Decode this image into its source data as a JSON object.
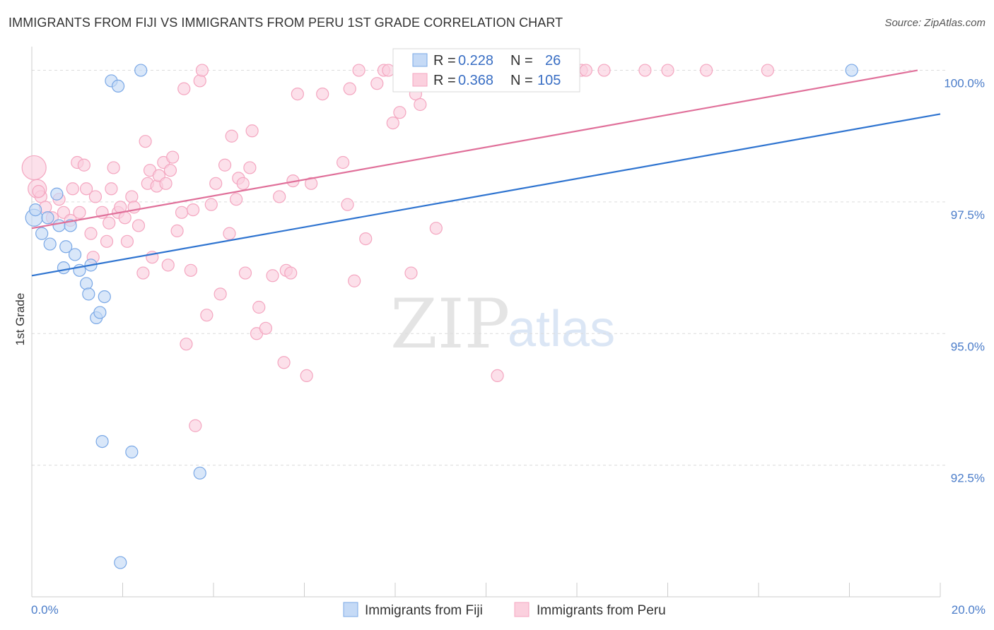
{
  "title": "IMMIGRANTS FROM FIJI VS IMMIGRANTS FROM PERU 1ST GRADE CORRELATION CHART",
  "source": "Source: ZipAtlas.com",
  "watermark": {
    "zip": "ZIP",
    "atlas": "atlas"
  },
  "chart_data": {
    "type": "scatter",
    "title": "IMMIGRANTS FROM FIJI VS IMMIGRANTS FROM PERU 1ST GRADE CORRELATION CHART",
    "xlabel": "",
    "ylabel": "1st Grade",
    "xlim": [
      0,
      20
    ],
    "ylim": [
      90.0,
      100.45
    ],
    "x_tick_labels": [
      "0.0%",
      "20.0%"
    ],
    "y_ticks": [
      92.5,
      95.0,
      97.5,
      100.0
    ],
    "y_tick_labels": [
      "92.5%",
      "95.0%",
      "97.5%",
      "100.0%"
    ],
    "grid": true,
    "legend_position": "top-center",
    "series": [
      {
        "name": "Immigrants from Fiji",
        "color": "#7aa8e6",
        "line_color": "#2f74d0",
        "R": "0.228",
        "N": "26",
        "trend": {
          "x": [
            0,
            20
          ],
          "y": [
            96.1,
            99.17
          ]
        },
        "points": [
          [
            0.05,
            97.2
          ],
          [
            0.08,
            97.35
          ],
          [
            0.22,
            96.9
          ],
          [
            0.35,
            97.2
          ],
          [
            0.4,
            96.7
          ],
          [
            0.55,
            97.65
          ],
          [
            0.6,
            97.05
          ],
          [
            0.7,
            96.25
          ],
          [
            0.75,
            96.65
          ],
          [
            0.85,
            97.05
          ],
          [
            0.95,
            96.5
          ],
          [
            1.05,
            96.2
          ],
          [
            1.2,
            95.95
          ],
          [
            1.25,
            95.75
          ],
          [
            1.3,
            96.3
          ],
          [
            1.42,
            95.3
          ],
          [
            1.5,
            95.4
          ],
          [
            1.6,
            95.7
          ],
          [
            1.75,
            99.8
          ],
          [
            1.9,
            99.7
          ],
          [
            1.55,
            92.95
          ],
          [
            2.2,
            92.75
          ],
          [
            2.4,
            100.0
          ],
          [
            3.7,
            92.35
          ],
          [
            1.95,
            90.65
          ],
          [
            18.05,
            100.0
          ]
        ]
      },
      {
        "name": "Immigrants from Peru",
        "color": "#f4a6c0",
        "line_color": "#e0709a",
        "R": "0.368",
        "N": "105",
        "trend": {
          "x": [
            0,
            19.5
          ],
          "y": [
            97.0,
            100.0
          ]
        },
        "points": [
          [
            0.05,
            98.15
          ],
          [
            0.12,
            97.75
          ],
          [
            0.2,
            97.6
          ],
          [
            0.3,
            97.4
          ],
          [
            0.45,
            97.2
          ],
          [
            0.6,
            97.55
          ],
          [
            0.7,
            97.3
          ],
          [
            0.85,
            97.15
          ],
          [
            0.9,
            97.75
          ],
          [
            1.0,
            98.25
          ],
          [
            1.05,
            97.3
          ],
          [
            1.15,
            98.2
          ],
          [
            1.2,
            97.75
          ],
          [
            1.3,
            96.9
          ],
          [
            1.35,
            96.45
          ],
          [
            1.4,
            97.6
          ],
          [
            1.55,
            97.3
          ],
          [
            1.65,
            96.75
          ],
          [
            1.7,
            97.1
          ],
          [
            1.75,
            97.75
          ],
          [
            1.8,
            98.15
          ],
          [
            1.9,
            97.3
          ],
          [
            1.95,
            97.4
          ],
          [
            2.05,
            97.2
          ],
          [
            2.1,
            96.75
          ],
          [
            2.2,
            97.6
          ],
          [
            2.25,
            97.4
          ],
          [
            2.35,
            97.05
          ],
          [
            2.45,
            96.15
          ],
          [
            2.5,
            98.65
          ],
          [
            2.55,
            97.85
          ],
          [
            2.6,
            98.1
          ],
          [
            2.65,
            96.45
          ],
          [
            2.75,
            97.8
          ],
          [
            2.8,
            98.0
          ],
          [
            2.9,
            98.25
          ],
          [
            2.95,
            97.85
          ],
          [
            3.0,
            96.3
          ],
          [
            3.05,
            98.1
          ],
          [
            3.1,
            98.35
          ],
          [
            3.2,
            96.95
          ],
          [
            3.3,
            97.3
          ],
          [
            3.35,
            99.65
          ],
          [
            3.4,
            94.8
          ],
          [
            3.5,
            96.2
          ],
          [
            3.55,
            97.35
          ],
          [
            3.6,
            93.25
          ],
          [
            3.7,
            99.8
          ],
          [
            3.75,
            100.0
          ],
          [
            3.85,
            95.35
          ],
          [
            3.95,
            97.45
          ],
          [
            4.05,
            97.85
          ],
          [
            4.15,
            95.75
          ],
          [
            4.25,
            98.2
          ],
          [
            4.35,
            96.9
          ],
          [
            4.4,
            98.75
          ],
          [
            4.5,
            97.55
          ],
          [
            4.55,
            97.95
          ],
          [
            4.65,
            97.85
          ],
          [
            4.7,
            96.15
          ],
          [
            4.8,
            98.15
          ],
          [
            4.85,
            98.85
          ],
          [
            4.95,
            95.0
          ],
          [
            5.0,
            95.5
          ],
          [
            5.15,
            95.1
          ],
          [
            5.3,
            96.1
          ],
          [
            5.45,
            97.6
          ],
          [
            5.55,
            94.45
          ],
          [
            5.6,
            96.2
          ],
          [
            5.7,
            96.15
          ],
          [
            5.75,
            97.9
          ],
          [
            5.85,
            99.55
          ],
          [
            6.05,
            94.2
          ],
          [
            6.15,
            97.85
          ],
          [
            6.4,
            99.55
          ],
          [
            6.85,
            98.25
          ],
          [
            6.95,
            97.45
          ],
          [
            7.0,
            99.65
          ],
          [
            7.1,
            96.0
          ],
          [
            7.2,
            100.0
          ],
          [
            7.35,
            96.8
          ],
          [
            7.6,
            99.75
          ],
          [
            7.75,
            100.0
          ],
          [
            7.85,
            100.0
          ],
          [
            7.95,
            99.0
          ],
          [
            8.1,
            99.2
          ],
          [
            8.35,
            96.15
          ],
          [
            8.45,
            99.55
          ],
          [
            8.55,
            99.35
          ],
          [
            8.75,
            100.0
          ],
          [
            8.9,
            97.0
          ],
          [
            9.25,
            100.0
          ],
          [
            10.0,
            100.0
          ],
          [
            10.25,
            94.2
          ],
          [
            10.35,
            100.0
          ],
          [
            11.0,
            100.0
          ],
          [
            11.2,
            100.0
          ],
          [
            12.1,
            100.0
          ],
          [
            12.2,
            100.0
          ],
          [
            12.6,
            100.0
          ],
          [
            13.5,
            100.0
          ],
          [
            14.0,
            100.0
          ],
          [
            14.85,
            100.0
          ],
          [
            16.2,
            100.0
          ],
          [
            0.15,
            97.7
          ]
        ]
      }
    ]
  },
  "legend": {
    "r_label": "R =",
    "n_label": "N ="
  }
}
